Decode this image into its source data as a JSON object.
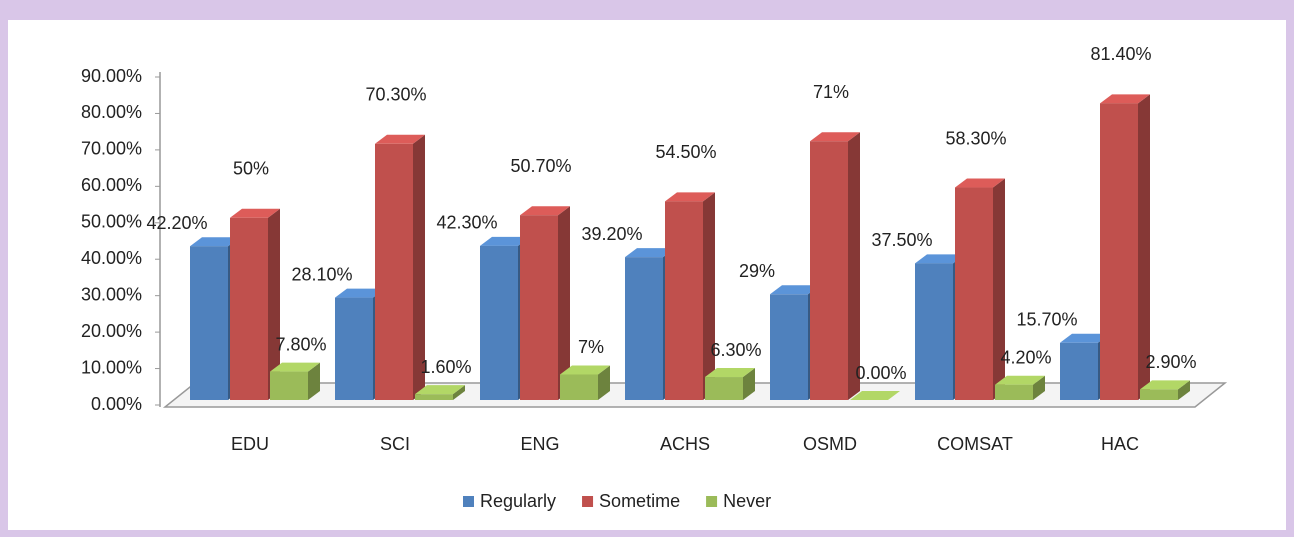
{
  "chart_data": {
    "type": "bar3d",
    "categories": [
      "EDU",
      "SCI",
      "ENG",
      "ACHS",
      "OSMD",
      "COMSAT",
      "HAC"
    ],
    "series": [
      {
        "name": "Regularly",
        "color": "#4f81bd",
        "values": [
          42.2,
          28.1,
          42.3,
          39.2,
          29,
          37.5,
          15.7
        ],
        "value_labels": [
          "42.20%",
          "28.10%",
          "42.30%",
          "39.20%",
          "29%",
          "37.50%",
          "15.70%"
        ]
      },
      {
        "name": "Sometime",
        "color": "#c0504d",
        "values": [
          50,
          70.3,
          50.7,
          54.5,
          71,
          58.3,
          81.4
        ],
        "value_labels": [
          "50%",
          "70.30%",
          "50.70%",
          "54.50%",
          "71%",
          "58.30%",
          "81.40%"
        ]
      },
      {
        "name": "Never",
        "color": "#9bbb59",
        "values": [
          7.8,
          1.6,
          7,
          6.3,
          0,
          4.2,
          2.9
        ],
        "value_labels": [
          "7.80%",
          "1.60%",
          "7%",
          "6.30%",
          "0.00%",
          "4.20%",
          "2.90%"
        ]
      }
    ],
    "ylim": [
      0,
      90
    ],
    "yticks": [
      {
        "value": 0,
        "label": "0.00%"
      },
      {
        "value": 10,
        "label": "10.00%"
      },
      {
        "value": 20,
        "label": "20.00%"
      },
      {
        "value": 30,
        "label": "30.00%"
      },
      {
        "value": 40,
        "label": "40.00%"
      },
      {
        "value": 50,
        "label": "50.00%"
      },
      {
        "value": 60,
        "label": "60.00%"
      },
      {
        "value": 70,
        "label": "70.00%"
      },
      {
        "value": 80,
        "label": "80.00%"
      },
      {
        "value": 90,
        "label": "90.00%"
      }
    ],
    "legend": "bottom"
  }
}
